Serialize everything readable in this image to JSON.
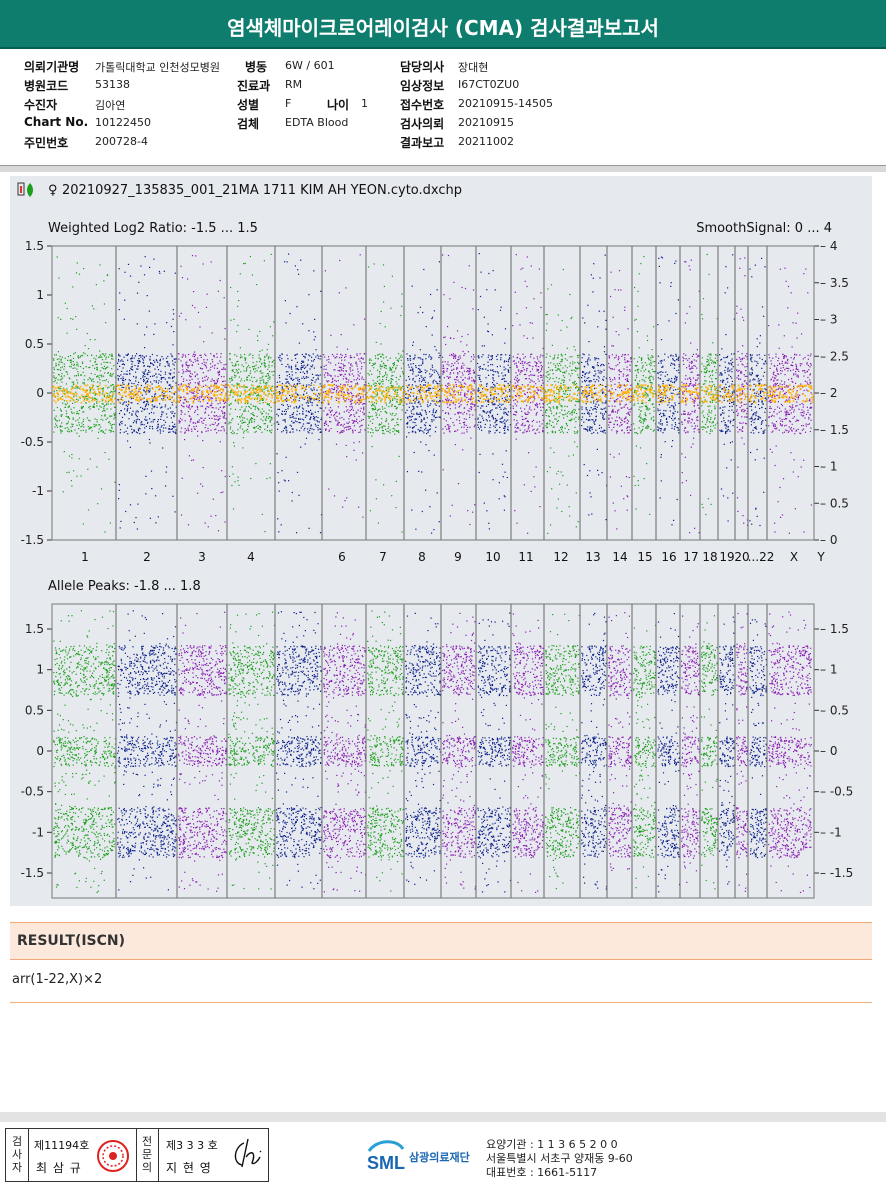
{
  "report": {
    "title": "염색체마이크로어레이검사 (CMA) 검사결과보고서"
  },
  "patient": {
    "labels": {
      "institution": "의뢰기관명",
      "hospital_code": "병원코드",
      "patient_name": "수진자",
      "chart_no": "Chart No.",
      "resident_no": "주민번호",
      "ward": "병동",
      "department": "진료과",
      "sex": "성별",
      "age": "나이",
      "specimen": "검체",
      "doctor": "담당의사",
      "clinical_info": "임상정보",
      "receipt_no": "접수번호",
      "request_date": "검사의뢰",
      "report_date": "결과보고"
    },
    "values": {
      "institution": "가톨릭대학교 인천성모병원",
      "hospital_code": "53138",
      "patient_name": "김아연",
      "chart_no": "10122450",
      "resident_no": "200728-4",
      "ward": "6W / 601",
      "department": "RM",
      "sex": "F",
      "age": "1",
      "specimen": "EDTA Blood",
      "doctor": "장대현",
      "clinical_info": "I67CT0ZU0",
      "receipt_no": "20210915-14505",
      "request_date": "20210915",
      "report_date": "20211002"
    }
  },
  "plot": {
    "file_symbol": "♀",
    "file_name": "20210927_135835_001_21MA 1711 KIM AH YEON.cyto.dxchp",
    "top_title_left": "Weighted Log2 Ratio: -1.5 ... 1.5",
    "top_title_right": "SmoothSignal: 0 ... 4",
    "bottom_title_left": "Allele Peaks: -1.8 ... 1.8",
    "top_left_ticks": [
      "1.5",
      "1",
      "0.5",
      "0",
      "-0.5",
      "-1",
      "-1.5"
    ],
    "top_right_ticks": [
      "4",
      "3.5",
      "3",
      "2.5",
      "2",
      "1.5",
      "1",
      "0.5",
      "0"
    ],
    "bottom_left_ticks": [
      "1.5",
      "1",
      "0.5",
      "0",
      "-0.5",
      "-1",
      "-1.5"
    ],
    "bottom_right_ticks": [
      "1.5",
      "1",
      "0.5",
      "0",
      "-0.5",
      "-1",
      "-1.5"
    ],
    "chromosome_labels": [
      "1",
      "2",
      "3",
      "4",
      "6",
      "7",
      "8",
      "9",
      "10",
      "11",
      "12",
      "13",
      "14",
      "15",
      "16",
      "17",
      "18",
      "19",
      "20",
      "...22",
      "X",
      "Y"
    ],
    "colors": {
      "green": "#1aa01a",
      "navy": "#0b1f8a",
      "purple": "#8a1ab4",
      "orange": "#ffb000"
    }
  },
  "result": {
    "heading": "RESULT(ISCN)",
    "value": "arr(1-22,X)×2"
  },
  "footer": {
    "inspector_label": "검사자",
    "inspector_license": "제11194호",
    "inspector_name": "최 삼 규",
    "specialist_label": "전문의",
    "specialist_license": "제3 3 3 호",
    "specialist_name": "지 현 영",
    "logo_text": "SML",
    "org_name": "삼광의료재단",
    "care_institution": "요양기관 : 1 1 3 6 5 2 0 0",
    "address": "서울특별시 서초구 양재동 9-60",
    "phone": "대표번호 : 1661-5117"
  }
}
